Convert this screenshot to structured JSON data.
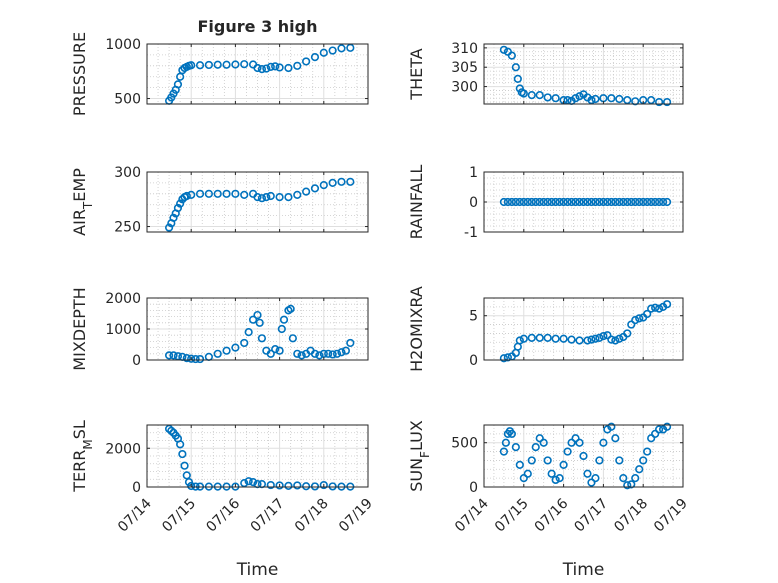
{
  "figure_title": "Figure 3 high",
  "chart_data": [
    {
      "type": "scatter",
      "id": "pressure",
      "title": "Figure 3 high",
      "ylabel_parts": [
        "PRESSURE"
      ],
      "ylim": [
        450,
        1000
      ],
      "yticks": [
        500,
        1000
      ],
      "ytick_labels": [
        "500",
        "1000"
      ],
      "xlim": [
        0,
        5
      ],
      "xticks": [
        0,
        1,
        2,
        3,
        4,
        5
      ],
      "xtick_labels": [
        "07/14",
        "07/15",
        "07/16",
        "07/17",
        "07/18",
        "07/19"
      ],
      "show_xticklabels": false,
      "xlabel": "",
      "x": [
        0.5,
        0.55,
        0.6,
        0.65,
        0.7,
        0.75,
        0.8,
        0.85,
        0.9,
        0.95,
        1.0,
        1.2,
        1.4,
        1.6,
        1.8,
        2.0,
        2.2,
        2.4,
        2.5,
        2.6,
        2.7,
        2.8,
        2.9,
        3.0,
        3.2,
        3.4,
        3.6,
        3.8,
        4.0,
        4.2,
        4.4,
        4.6
      ],
      "y": [
        480,
        510,
        545,
        580,
        630,
        700,
        760,
        780,
        790,
        800,
        805,
        805,
        808,
        810,
        810,
        812,
        815,
        812,
        780,
        770,
        775,
        790,
        795,
        785,
        780,
        800,
        840,
        880,
        920,
        940,
        960,
        965
      ]
    },
    {
      "type": "scatter",
      "id": "theta",
      "title": "",
      "ylabel_parts": [
        "THETA"
      ],
      "ylim": [
        295.5,
        311
      ],
      "yticks": [
        300,
        305,
        310
      ],
      "ytick_labels": [
        "300",
        "305",
        "310"
      ],
      "xlim": [
        0,
        5
      ],
      "xticks": [
        0,
        1,
        2,
        3,
        4,
        5
      ],
      "xtick_labels": [
        "07/14",
        "07/15",
        "07/16",
        "07/17",
        "07/18",
        "07/19"
      ],
      "show_xticklabels": false,
      "xlabel": "",
      "x": [
        0.5,
        0.6,
        0.7,
        0.8,
        0.85,
        0.9,
        0.95,
        1.0,
        1.2,
        1.4,
        1.6,
        1.8,
        2.0,
        2.1,
        2.2,
        2.3,
        2.4,
        2.5,
        2.6,
        2.7,
        2.8,
        3.0,
        3.2,
        3.4,
        3.6,
        3.8,
        4.0,
        4.2,
        4.4,
        4.6
      ],
      "y": [
        309.5,
        309.0,
        308.0,
        305.0,
        302.0,
        299.5,
        298.5,
        298.2,
        297.8,
        297.8,
        297.2,
        297.0,
        296.5,
        296.5,
        296.3,
        297.0,
        297.5,
        298.0,
        297.2,
        296.5,
        296.8,
        297.0,
        297.0,
        296.8,
        296.5,
        296.2,
        296.5,
        296.5,
        296.0,
        296.0
      ]
    },
    {
      "type": "scatter",
      "id": "air_temp",
      "title": "",
      "ylabel_parts": [
        "AIR",
        "T",
        "EMP"
      ],
      "ylim": [
        245,
        300
      ],
      "yticks": [
        250,
        300
      ],
      "ytick_labels": [
        "250",
        "300"
      ],
      "xlim": [
        0,
        5
      ],
      "xticks": [
        0,
        1,
        2,
        3,
        4,
        5
      ],
      "xtick_labels": [
        "07/14",
        "07/15",
        "07/16",
        "07/17",
        "07/18",
        "07/19"
      ],
      "show_xticklabels": false,
      "xlabel": "",
      "x": [
        0.5,
        0.55,
        0.6,
        0.65,
        0.7,
        0.75,
        0.8,
        0.85,
        0.9,
        1.0,
        1.2,
        1.4,
        1.6,
        1.8,
        2.0,
        2.2,
        2.4,
        2.5,
        2.6,
        2.7,
        2.8,
        3.0,
        3.2,
        3.4,
        3.6,
        3.8,
        4.0,
        4.2,
        4.4,
        4.6
      ],
      "y": [
        249,
        253,
        258,
        262,
        267,
        271,
        275,
        277,
        278,
        279,
        280,
        280,
        280,
        280,
        280,
        279,
        280,
        277,
        276,
        277,
        278,
        277,
        277,
        279,
        282,
        285,
        288,
        290,
        291,
        291
      ]
    },
    {
      "type": "scatter",
      "id": "rainfall",
      "title": "",
      "ylabel_parts": [
        "RAINFALL"
      ],
      "ylim": [
        -1,
        1
      ],
      "yticks": [
        -1,
        0,
        1
      ],
      "ytick_labels": [
        "-1",
        "0",
        "1"
      ],
      "xlim": [
        0,
        5
      ],
      "xticks": [
        0,
        1,
        2,
        3,
        4,
        5
      ],
      "xtick_labels": [
        "07/14",
        "07/15",
        "07/16",
        "07/17",
        "07/18",
        "07/19"
      ],
      "show_xticklabels": false,
      "xlabel": "",
      "x": [
        0.5,
        0.6,
        0.7,
        0.8,
        0.9,
        1.0,
        1.1,
        1.2,
        1.3,
        1.4,
        1.5,
        1.6,
        1.7,
        1.8,
        1.9,
        2.0,
        2.1,
        2.2,
        2.3,
        2.4,
        2.5,
        2.6,
        2.7,
        2.8,
        2.9,
        3.0,
        3.1,
        3.2,
        3.3,
        3.4,
        3.5,
        3.6,
        3.7,
        3.8,
        3.9,
        4.0,
        4.1,
        4.2,
        4.3,
        4.4,
        4.5,
        4.6
      ],
      "y": [
        0,
        0,
        0,
        0,
        0,
        0,
        0,
        0,
        0,
        0,
        0,
        0,
        0,
        0,
        0,
        0,
        0,
        0,
        0,
        0,
        0,
        0,
        0,
        0,
        0,
        0,
        0,
        0,
        0,
        0,
        0,
        0,
        0,
        0,
        0,
        0,
        0,
        0,
        0,
        0,
        0,
        0
      ]
    },
    {
      "type": "scatter",
      "id": "mixdepth",
      "title": "",
      "ylabel_parts": [
        "MIXDEPTH"
      ],
      "ylim": [
        0,
        2000
      ],
      "yticks": [
        0,
        1000,
        2000
      ],
      "ytick_labels": [
        "0",
        "1000",
        "2000"
      ],
      "xlim": [
        0,
        5
      ],
      "xticks": [
        0,
        1,
        2,
        3,
        4,
        5
      ],
      "xtick_labels": [
        "07/14",
        "07/15",
        "07/16",
        "07/17",
        "07/18",
        "07/19"
      ],
      "show_xticklabels": false,
      "xlabel": "",
      "x": [
        0.5,
        0.6,
        0.7,
        0.8,
        0.9,
        1.0,
        1.1,
        1.2,
        1.4,
        1.6,
        1.8,
        2.0,
        2.2,
        2.3,
        2.4,
        2.5,
        2.55,
        2.6,
        2.7,
        2.8,
        2.9,
        3.0,
        3.05,
        3.1,
        3.2,
        3.25,
        3.3,
        3.4,
        3.5,
        3.6,
        3.7,
        3.8,
        3.9,
        4.0,
        4.1,
        4.2,
        4.3,
        4.4,
        4.5,
        4.6
      ],
      "y": [
        150,
        150,
        120,
        100,
        60,
        40,
        30,
        30,
        100,
        200,
        300,
        400,
        550,
        900,
        1300,
        1450,
        1200,
        700,
        300,
        200,
        350,
        300,
        1000,
        1300,
        1600,
        1650,
        700,
        200,
        150,
        200,
        300,
        200,
        150,
        200,
        200,
        180,
        200,
        250,
        300,
        550
      ]
    },
    {
      "type": "scatter",
      "id": "h2omixra",
      "title": "",
      "ylabel_parts": [
        "H2OMIXRA"
      ],
      "ylim": [
        0,
        7
      ],
      "yticks": [
        0,
        5
      ],
      "ytick_labels": [
        "0",
        "5"
      ],
      "xlim": [
        0,
        5
      ],
      "xticks": [
        0,
        1,
        2,
        3,
        4,
        5
      ],
      "xtick_labels": [
        "07/14",
        "07/15",
        "07/16",
        "07/17",
        "07/18",
        "07/19"
      ],
      "show_xticklabels": false,
      "xlabel": "",
      "x": [
        0.5,
        0.6,
        0.7,
        0.8,
        0.85,
        0.9,
        1.0,
        1.2,
        1.4,
        1.6,
        1.8,
        2.0,
        2.2,
        2.4,
        2.6,
        2.7,
        2.8,
        2.9,
        3.0,
        3.1,
        3.2,
        3.3,
        3.4,
        3.5,
        3.6,
        3.7,
        3.8,
        3.9,
        4.0,
        4.1,
        4.2,
        4.3,
        4.4,
        4.5,
        4.6
      ],
      "y": [
        0.2,
        0.3,
        0.4,
        0.8,
        1.5,
        2.2,
        2.4,
        2.5,
        2.5,
        2.5,
        2.4,
        2.4,
        2.3,
        2.2,
        2.2,
        2.3,
        2.4,
        2.5,
        2.7,
        2.8,
        2.3,
        2.2,
        2.4,
        2.6,
        3.0,
        4.0,
        4.5,
        4.7,
        4.8,
        5.2,
        5.8,
        5.9,
        5.8,
        6.0,
        6.3
      ]
    },
    {
      "type": "scatter",
      "id": "terr_msl",
      "title": "",
      "ylabel_parts": [
        "TERR",
        "M",
        "SL"
      ],
      "ylim": [
        0,
        3200
      ],
      "yticks": [
        0,
        2000
      ],
      "ytick_labels": [
        "0",
        "2000"
      ],
      "xlim": [
        0,
        5
      ],
      "xticks": [
        0,
        1,
        2,
        3,
        4,
        5
      ],
      "xtick_labels": [
        "07/14",
        "07/15",
        "07/16",
        "07/17",
        "07/18",
        "07/19"
      ],
      "show_xticklabels": true,
      "xlabel": "Time",
      "x": [
        0.5,
        0.55,
        0.6,
        0.65,
        0.7,
        0.75,
        0.8,
        0.85,
        0.9,
        0.95,
        1.0,
        1.1,
        1.2,
        1.4,
        1.6,
        1.8,
        2.0,
        2.2,
        2.3,
        2.4,
        2.5,
        2.6,
        2.8,
        3.0,
        3.2,
        3.4,
        3.6,
        3.8,
        4.0,
        4.2,
        4.4,
        4.6
      ],
      "y": [
        3000,
        2900,
        2800,
        2650,
        2500,
        2200,
        1700,
        1100,
        600,
        250,
        50,
        20,
        20,
        20,
        20,
        20,
        20,
        200,
        300,
        250,
        150,
        150,
        100,
        80,
        60,
        80,
        40,
        30,
        100,
        30,
        20,
        20
      ]
    },
    {
      "type": "scatter",
      "id": "sun_flux",
      "title": "",
      "ylabel_parts": [
        "SUN",
        "F",
        "LUX"
      ],
      "ylim": [
        0,
        700
      ],
      "yticks": [
        0,
        500
      ],
      "ytick_labels": [
        "0",
        "500"
      ],
      "xlim": [
        0,
        5
      ],
      "xticks": [
        0,
        1,
        2,
        3,
        4,
        5
      ],
      "xtick_labels": [
        "07/14",
        "07/15",
        "07/16",
        "07/17",
        "07/18",
        "07/19"
      ],
      "show_xticklabels": true,
      "xlabel": "Time",
      "x": [
        0.5,
        0.55,
        0.6,
        0.65,
        0.7,
        0.8,
        0.9,
        1.0,
        1.1,
        1.2,
        1.3,
        1.4,
        1.5,
        1.6,
        1.7,
        1.8,
        1.9,
        2.0,
        2.1,
        2.2,
        2.3,
        2.4,
        2.5,
        2.6,
        2.7,
        2.8,
        2.9,
        3.0,
        3.1,
        3.2,
        3.3,
        3.4,
        3.5,
        3.6,
        3.7,
        3.8,
        3.9,
        4.0,
        4.1,
        4.2,
        4.3,
        4.4,
        4.5,
        4.6
      ],
      "y": [
        400,
        500,
        600,
        630,
        600,
        450,
        250,
        100,
        150,
        300,
        450,
        550,
        500,
        300,
        150,
        80,
        100,
        250,
        400,
        500,
        550,
        500,
        350,
        150,
        50,
        100,
        300,
        500,
        650,
        680,
        550,
        300,
        100,
        20,
        30,
        100,
        200,
        300,
        400,
        550,
        600,
        650,
        650,
        680
      ]
    }
  ]
}
